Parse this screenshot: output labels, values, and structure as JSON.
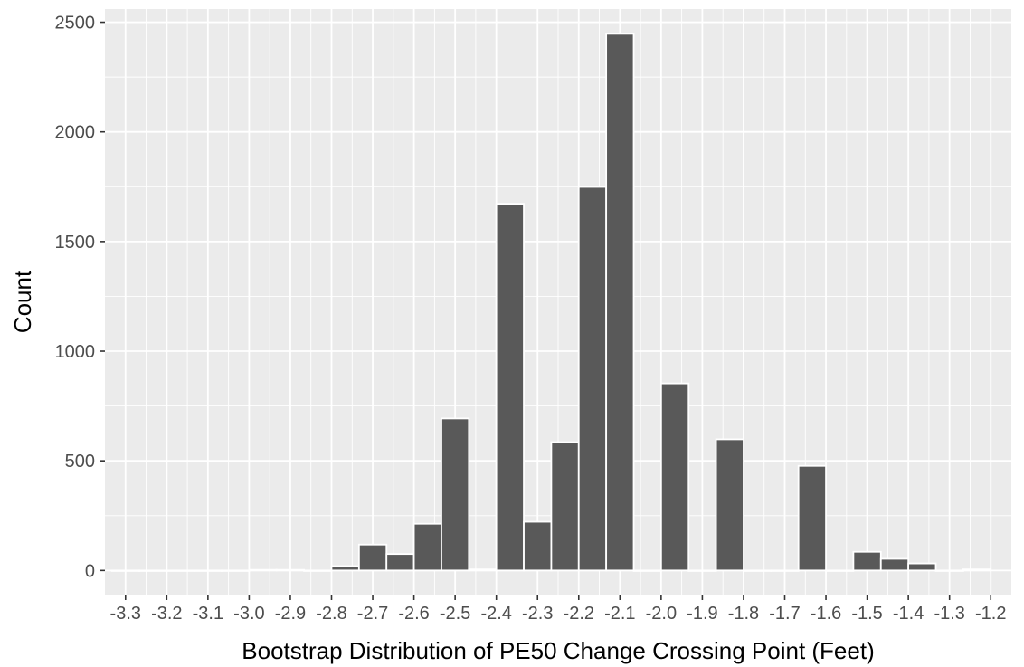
{
  "chart_data": {
    "type": "bar",
    "title": "",
    "xlabel": "Bootstrap Distribution of PE50 Change Crossing Point (Feet)",
    "ylabel": "Count",
    "xlim": [
      -3.35,
      -1.15
    ],
    "ylim": [
      -110,
      2560
    ],
    "x_ticks": [
      -3.3,
      -3.2,
      -3.1,
      -3.0,
      -2.9,
      -2.8,
      -2.7,
      -2.6,
      -2.5,
      -2.4,
      -2.3,
      -2.2,
      -2.1,
      -2.0,
      -1.9,
      -1.8,
      -1.7,
      -1.6,
      -1.5,
      -1.4,
      -1.3,
      -1.2
    ],
    "x_tick_labels": [
      "-3.3",
      "-3.2",
      "-3.1",
      "-3.0",
      "-2.9",
      "-2.8",
      "-2.7",
      "-2.6",
      "-2.5",
      "-2.4",
      "-2.3",
      "-2.2",
      "-2.1",
      "-2.0",
      "-1.9",
      "-1.8",
      "-1.7",
      "-1.6",
      "-1.5",
      "-1.4",
      "-1.3",
      "-1.2"
    ],
    "y_ticks": [
      0,
      500,
      1000,
      1500,
      2000,
      2500
    ],
    "y_tick_labels": [
      "0",
      "500",
      "1000",
      "1500",
      "2000",
      "2500"
    ],
    "grid": true,
    "bin_width": 0.0667,
    "bins": [
      {
        "center": -3.3,
        "count": 0
      },
      {
        "center": -3.2333,
        "count": 0
      },
      {
        "center": -3.1667,
        "count": 0
      },
      {
        "center": -3.1,
        "count": 0
      },
      {
        "center": -3.0333,
        "count": 0
      },
      {
        "center": -2.9667,
        "count": 3
      },
      {
        "center": -2.9,
        "count": 3
      },
      {
        "center": -2.8333,
        "count": 0
      },
      {
        "center": -2.7667,
        "count": 20
      },
      {
        "center": -2.7,
        "count": 118
      },
      {
        "center": -2.6333,
        "count": 75
      },
      {
        "center": -2.5667,
        "count": 213
      },
      {
        "center": -2.5,
        "count": 693
      },
      {
        "center": -2.4333,
        "count": 5
      },
      {
        "center": -2.3667,
        "count": 1672
      },
      {
        "center": -2.3,
        "count": 222
      },
      {
        "center": -2.2333,
        "count": 585
      },
      {
        "center": -2.1667,
        "count": 1749
      },
      {
        "center": -2.1,
        "count": 2447
      },
      {
        "center": -2.0333,
        "count": 0
      },
      {
        "center": -1.9667,
        "count": 853
      },
      {
        "center": -1.9,
        "count": 0
      },
      {
        "center": -1.8333,
        "count": 598
      },
      {
        "center": -1.7667,
        "count": 0
      },
      {
        "center": -1.7,
        "count": 0
      },
      {
        "center": -1.6333,
        "count": 477
      },
      {
        "center": -1.5667,
        "count": 0
      },
      {
        "center": -1.5,
        "count": 85
      },
      {
        "center": -1.4333,
        "count": 53
      },
      {
        "center": -1.3667,
        "count": 32
      },
      {
        "center": -1.3,
        "count": 0
      },
      {
        "center": -1.2333,
        "count": 5
      }
    ],
    "colors": {
      "panel": "#ebebeb",
      "grid": "#ffffff",
      "bar_fill": "#595959",
      "bar_outline": "#ffffff"
    }
  }
}
